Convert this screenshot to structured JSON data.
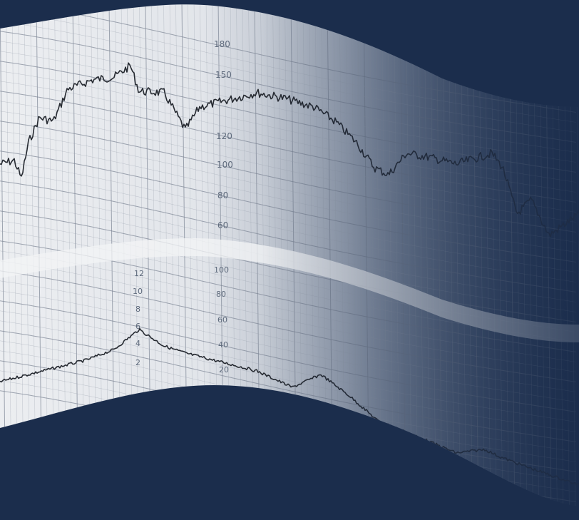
{
  "image": {
    "colors": {
      "background": "#1b2d4c",
      "paper": "#e9ebee",
      "grid": "#8a93a1",
      "trace": "#262a31"
    }
  },
  "upper_panel": {
    "scale_labels": [
      "180",
      "150",
      "120",
      "100",
      "80",
      "60"
    ]
  },
  "lower_panel": {
    "left_scale_labels": [
      "12",
      "10",
      "8",
      "6",
      "4",
      "2"
    ],
    "right_scale_labels": [
      "100",
      "80",
      "60",
      "40",
      "20"
    ],
    "far_scale_labels": [
      "12",
      "10",
      "8",
      "6",
      "4",
      "2"
    ]
  }
}
